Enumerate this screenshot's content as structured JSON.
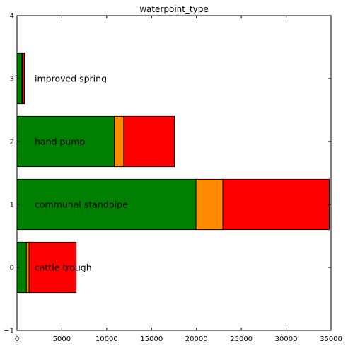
{
  "chart_data": {
    "type": "bar",
    "orientation": "horizontal",
    "stacked": true,
    "title": "waterpoint_type",
    "xlabel": "",
    "ylabel": "",
    "xlim": [
      0,
      35000
    ],
    "ylim": [
      -1,
      4
    ],
    "x_ticks": [
      0,
      5000,
      10000,
      15000,
      20000,
      25000,
      30000,
      35000
    ],
    "y_ticks": [
      -1,
      0,
      1,
      2,
      3,
      4
    ],
    "grid": false,
    "categories": [
      "cattle trough",
      "communal standpipe",
      "hand pump",
      "improved spring"
    ],
    "positions": [
      0,
      1,
      2,
      3
    ],
    "series": [
      {
        "color": "#008000",
        "values": [
          1050,
          19950,
          10850,
          550
        ]
      },
      {
        "color": "#ff8c00",
        "values": [
          300,
          3000,
          1050,
          80
        ]
      },
      {
        "color": "#ff0000",
        "values": [
          5250,
          11850,
          5650,
          200
        ]
      }
    ]
  }
}
